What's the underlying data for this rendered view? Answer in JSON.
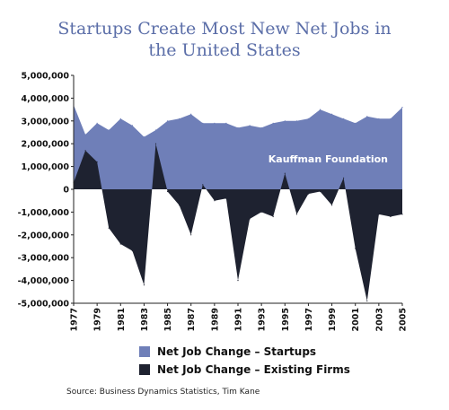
{
  "chart_data": {
    "type": "area",
    "title_line1": "Startups Create Most New Net Jobs in",
    "title_line2": "the United States",
    "ylim": [
      -5000000,
      5000000
    ],
    "y_ticks": [
      "5,000,000",
      "4,000,000",
      "3,000,000",
      "2,000,000",
      "1,000,000",
      "0",
      "-1,000,000",
      "-2,000,000",
      "-3,000,000",
      "-4,000,000",
      "-5,000,000"
    ],
    "y_tick_values": [
      5000000,
      4000000,
      3000000,
      2000000,
      1000000,
      0,
      -1000000,
      -2000000,
      -3000000,
      -4000000,
      -5000000
    ],
    "x_ticks": [
      "1977",
      "1979",
      "1981",
      "1983",
      "1985",
      "1987",
      "1989",
      "1991",
      "1993",
      "1995",
      "1997",
      "1999",
      "2001",
      "2003",
      "2005"
    ],
    "x_tick_values": [
      1977,
      1979,
      1981,
      1983,
      1985,
      1987,
      1989,
      1991,
      1993,
      1995,
      1997,
      1999,
      2001,
      2003,
      2005
    ],
    "xlim": [
      1977,
      2005
    ],
    "annotation": "Kauffman Foundation",
    "series": [
      {
        "name": "Net Job Change – Startups",
        "color": "#6f7fb8",
        "x": [
          1977,
          1978,
          1979,
          1980,
          1981,
          1982,
          1983,
          1984,
          1985,
          1986,
          1987,
          1988,
          1989,
          1990,
          1991,
          1992,
          1993,
          1994,
          1995,
          1996,
          1997,
          1998,
          1999,
          2000,
          2001,
          2002,
          2003,
          2004,
          2005
        ],
        "values": [
          3700000,
          2400000,
          2900000,
          2600000,
          3100000,
          2800000,
          2300000,
          2600000,
          3000000,
          3100000,
          3300000,
          2900000,
          2900000,
          2900000,
          2700000,
          2800000,
          2700000,
          2900000,
          3000000,
          3000000,
          3100000,
          3500000,
          3300000,
          3100000,
          2900000,
          3200000,
          3100000,
          3100000,
          3600000
        ]
      },
      {
        "name": "Net Job Change – Existing Firms",
        "color": "#1e2230",
        "x": [
          1977,
          1978,
          1979,
          1980,
          1981,
          1982,
          1983,
          1984,
          1985,
          1986,
          1987,
          1988,
          1989,
          1990,
          1991,
          1992,
          1993,
          1994,
          1995,
          1996,
          1997,
          1998,
          1999,
          2000,
          2001,
          2002,
          2003,
          2004,
          2005
        ],
        "values": [
          300000,
          1700000,
          1200000,
          -1700000,
          -2400000,
          -2700000,
          -4200000,
          2000000,
          -100000,
          -700000,
          -2000000,
          200000,
          -500000,
          -400000,
          -4000000,
          -1300000,
          -1000000,
          -1200000,
          700000,
          -1100000,
          -200000,
          -100000,
          -700000,
          500000,
          -2600000,
          -4900000,
          -1100000,
          -1200000,
          -1100000
        ]
      }
    ]
  },
  "legend": {
    "startups_label": "Net Job Change – Startups",
    "existing_label": "Net Job Change – Existing Firms"
  },
  "source": "Source: Business Dynamics Statistics, Tim Kane"
}
